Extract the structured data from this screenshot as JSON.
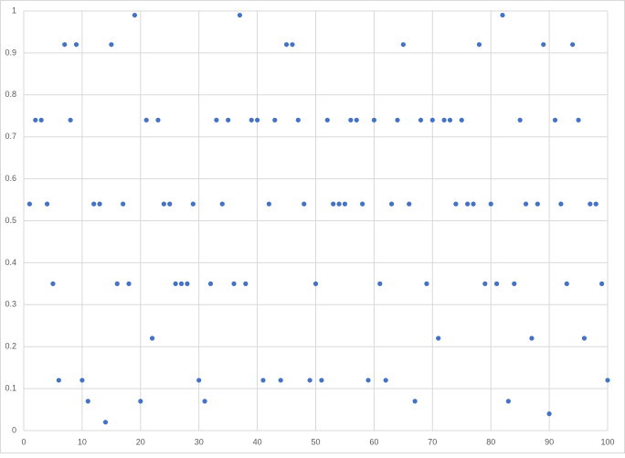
{
  "chart_data": {
    "type": "scatter",
    "x": [
      1,
      2,
      3,
      4,
      5,
      6,
      7,
      8,
      9,
      10,
      11,
      12,
      13,
      14,
      15,
      16,
      17,
      18,
      19,
      20,
      21,
      22,
      23,
      24,
      25,
      26,
      27,
      28,
      29,
      30,
      31,
      32,
      33,
      34,
      35,
      36,
      37,
      38,
      39,
      40,
      41,
      42,
      43,
      44,
      45,
      46,
      47,
      48,
      49,
      50,
      51,
      52,
      53,
      54,
      55,
      56,
      57,
      58,
      59,
      60,
      61,
      62,
      63,
      64,
      65,
      66,
      67,
      68,
      69,
      70,
      71,
      72,
      73,
      74,
      75,
      76,
      77,
      78,
      79,
      80,
      81,
      82,
      83,
      84,
      85,
      86,
      87,
      88,
      89,
      90,
      91,
      92,
      93,
      94,
      95,
      96,
      97,
      98,
      99,
      100
    ],
    "values": [
      0.54,
      0.74,
      0.74,
      0.54,
      0.35,
      0.12,
      0.92,
      0.74,
      0.92,
      0.12,
      0.07,
      0.54,
      0.54,
      0.02,
      0.92,
      0.35,
      0.54,
      0.35,
      0.99,
      0.07,
      0.74,
      0.22,
      0.74,
      0.54,
      0.54,
      0.35,
      0.35,
      0.35,
      0.54,
      0.12,
      0.07,
      0.35,
      0.74,
      0.54,
      0.74,
      0.35,
      0.99,
      0.35,
      0.74,
      0.74,
      0.12,
      0.54,
      0.74,
      0.12,
      0.92,
      0.92,
      0.74,
      0.54,
      0.12,
      0.35,
      0.12,
      0.74,
      0.54,
      0.54,
      0.54,
      0.74,
      0.74,
      0.54,
      0.12,
      0.74,
      0.35,
      0.12,
      0.54,
      0.74,
      0.92,
      0.54,
      0.07,
      0.74,
      0.35,
      0.74,
      0.22,
      0.74,
      0.74,
      0.54,
      0.74,
      0.54,
      0.54,
      0.92,
      0.35,
      0.54,
      0.35,
      0.99,
      0.07,
      0.35,
      0.74,
      0.54,
      0.22,
      0.54,
      0.92,
      0.04,
      0.74,
      0.54,
      0.35,
      0.92,
      0.74,
      0.22,
      0.54,
      0.54,
      0.35,
      0.12
    ],
    "color": "#4472c4",
    "xlim": [
      0,
      100
    ],
    "xticks": [
      0,
      10,
      20,
      30,
      40,
      50,
      60,
      70,
      80,
      90,
      100
    ],
    "ylim": [
      0,
      1
    ],
    "yticks": [
      0,
      0.1,
      0.2,
      0.3,
      0.4,
      0.5,
      0.6,
      0.7,
      0.8,
      0.9,
      1
    ],
    "grid": true
  }
}
